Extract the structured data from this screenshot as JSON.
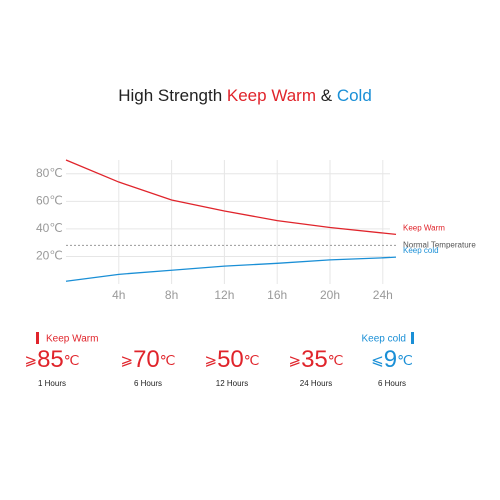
{
  "chart_data": {
    "type": "line",
    "title": {
      "parts": [
        {
          "text": "High Strength ",
          "color": "#222222"
        },
        {
          "text": "Keep Warm",
          "color": "#e0242b"
        },
        {
          "text": " & ",
          "color": "#222222"
        },
        {
          "text": "Cold",
          "color": "#1a8fd6"
        }
      ]
    },
    "x": [
      0,
      4,
      8,
      12,
      16,
      20,
      24,
      25
    ],
    "series": [
      {
        "name": "Keep Warm",
        "color": "#e0242b",
        "values": [
          90,
          74,
          61,
          53,
          46,
          41,
          37,
          36
        ]
      },
      {
        "name": "Keep cold",
        "color": "#1a8fd6",
        "values": [
          2,
          7,
          10,
          13,
          15,
          17.5,
          19,
          19.5
        ]
      }
    ],
    "reference_line": {
      "name": "Normal Temperature",
      "value": 28,
      "color": "#999999"
    },
    "xlim": [
      0,
      25
    ],
    "ylim": [
      0,
      90
    ],
    "xticks": [
      {
        "value": 4,
        "label": "4h"
      },
      {
        "value": 8,
        "label": "8h"
      },
      {
        "value": 12,
        "label": "12h"
      },
      {
        "value": 16,
        "label": "16h"
      },
      {
        "value": 20,
        "label": "20h"
      },
      {
        "value": 24,
        "label": "24h"
      }
    ],
    "yticks": [
      {
        "value": 20,
        "label": "20℃"
      },
      {
        "value": 40,
        "label": "40℃"
      },
      {
        "value": 60,
        "label": "60℃"
      },
      {
        "value": 80,
        "label": "80℃"
      }
    ],
    "grid": true
  },
  "stats": {
    "warm_label": "Keep Warm",
    "cold_label": "Keep cold",
    "items": [
      {
        "prefix": "⩾",
        "value": 85,
        "unit": "℃",
        "label": "1 Hours",
        "color": "#e0242b"
      },
      {
        "prefix": "⩾",
        "value": 70,
        "unit": "℃",
        "label": "6 Hours",
        "color": "#e0242b"
      },
      {
        "prefix": "⩾",
        "value": 50,
        "unit": "℃",
        "label": "12 Hours",
        "color": "#e0242b"
      },
      {
        "prefix": "⩾",
        "value": 35,
        "unit": "℃",
        "label": "24 Hours",
        "color": "#e0242b"
      },
      {
        "prefix": "⩽",
        "value": 9,
        "unit": "℃",
        "label": "6 Hours",
        "color": "#1a8fd6"
      }
    ]
  }
}
